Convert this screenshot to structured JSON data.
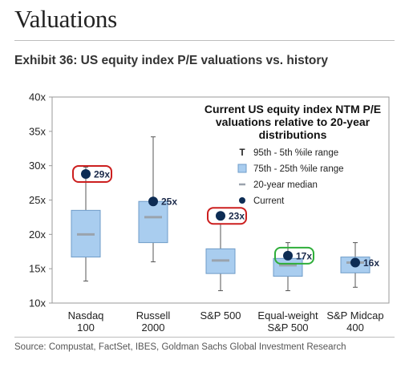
{
  "header": {
    "title": "Valuations",
    "exhibit": "Exhibit 36: US equity index P/E valuations vs. history",
    "source": "Source: Compustat, FactSet, IBES, Goldman Sachs Global Investment Research"
  },
  "colors": {
    "box_fill": "#a9cdef",
    "box_stroke": "#6f9cc8",
    "median": "#9aa3ad",
    "whisker": "#555555",
    "current": "#0d2c54",
    "highlight_red": "#cc1f1f",
    "highlight_green": "#2fae3a"
  },
  "chart_data": {
    "type": "box",
    "ylim": [
      10,
      40
    ],
    "yticks": [
      10,
      15,
      20,
      25,
      30,
      35,
      40
    ],
    "ytick_labels": [
      "10x",
      "15x",
      "20x",
      "25x",
      "30x",
      "35x",
      "40x"
    ],
    "legend": {
      "title_lines": [
        "Current US equity index NTM P/E",
        "valuations relative to 20-year",
        "distributions"
      ],
      "items": [
        {
          "symbol": "T",
          "label": "95th - 5th %ile range"
        },
        {
          "symbol": "box",
          "label": "75th - 25th %ile range"
        },
        {
          "symbol": "dash",
          "label": "20-year median"
        },
        {
          "symbol": "dot",
          "label": "Current"
        }
      ]
    },
    "categories": [
      {
        "label_lines": [
          "Nasdaq",
          "100"
        ],
        "p5": 13.2,
        "p25": 16.7,
        "median": 20.0,
        "p75": 23.5,
        "p95": 29.8,
        "current": 28.8,
        "current_label": "29x",
        "highlight": "red",
        "label_side": "right"
      },
      {
        "label_lines": [
          "Russell",
          "2000"
        ],
        "p5": 16.0,
        "p25": 18.8,
        "median": 22.5,
        "p75": 24.8,
        "p95": 34.2,
        "current": 24.8,
        "current_label": "25x",
        "highlight": "none",
        "label_side": "right"
      },
      {
        "label_lines": [
          "S&P 500"
        ],
        "p5": 11.8,
        "p25": 14.3,
        "median": 16.2,
        "p75": 17.9,
        "p95": 21.5,
        "current": 22.7,
        "current_label": "23x",
        "highlight": "red",
        "label_side": "right"
      },
      {
        "label_lines": [
          "Equal-weight",
          "S&P 500"
        ],
        "p5": 11.8,
        "p25": 13.9,
        "median": 15.5,
        "p75": 16.5,
        "p95": 18.8,
        "current": 16.9,
        "current_label": "17x",
        "highlight": "green",
        "label_side": "right"
      },
      {
        "label_lines": [
          "S&P Midcap",
          "400"
        ],
        "p5": 12.3,
        "p25": 14.4,
        "median": 15.9,
        "p75": 16.7,
        "p95": 18.8,
        "current": 15.9,
        "current_label": "16x",
        "highlight": "none",
        "label_side": "right"
      }
    ]
  }
}
